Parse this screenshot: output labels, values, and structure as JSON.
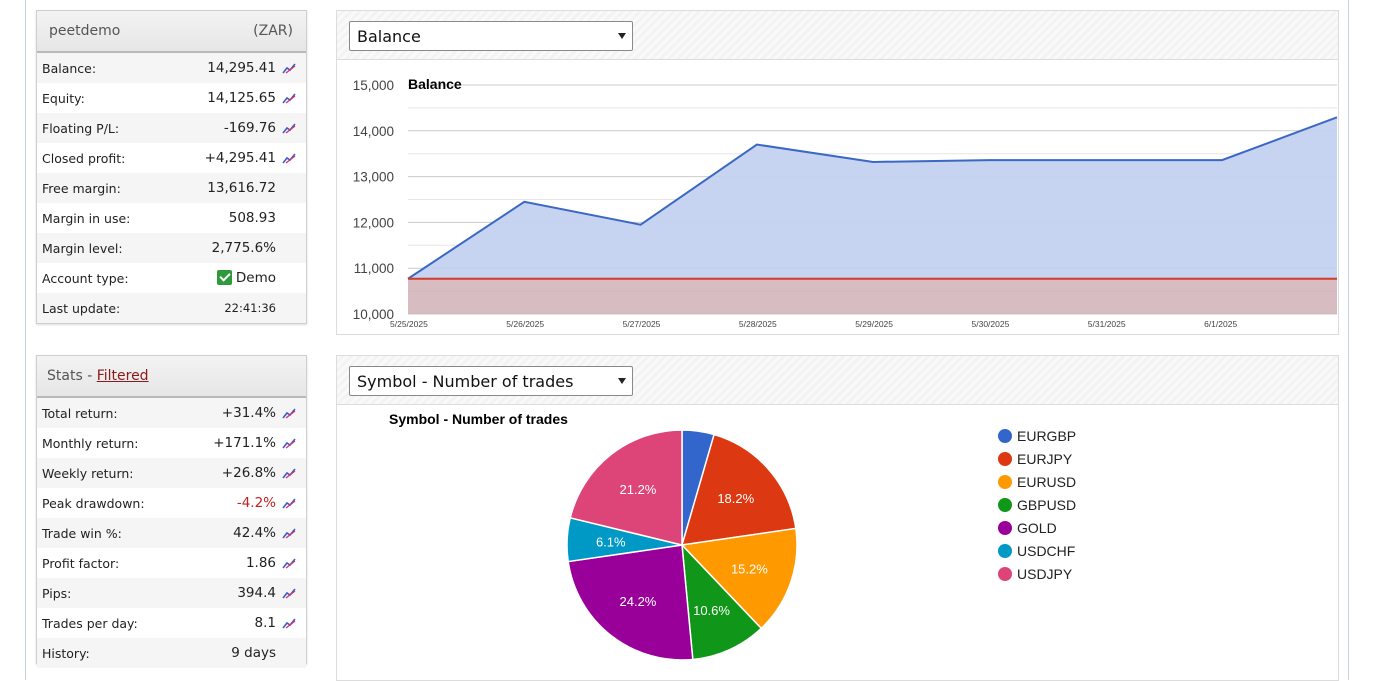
{
  "account": {
    "name": "peetdemo",
    "currency": "(ZAR)",
    "rows": [
      {
        "label": "Balance:",
        "value": "14,295.41",
        "chart_icon": true
      },
      {
        "label": "Equity:",
        "value": "14,125.65",
        "chart_icon": true
      },
      {
        "label": "Floating P/L:",
        "value": "-169.76",
        "chart_icon": true
      },
      {
        "label": "Closed profit:",
        "value": "+4,295.41",
        "chart_icon": true
      },
      {
        "label": "Free margin:",
        "value": "13,616.72",
        "chart_icon": false
      },
      {
        "label": "Margin in use:",
        "value": "508.93",
        "chart_icon": false
      },
      {
        "label": "Margin level:",
        "value": "2,775.6%",
        "chart_icon": false
      },
      {
        "label": "Account type:",
        "value": "Demo",
        "chart_icon": false,
        "check_icon": true
      },
      {
        "label": "Last update:",
        "value": "22:41:36",
        "chart_icon": false,
        "small": true
      }
    ]
  },
  "stats": {
    "title": "Stats",
    "separator": " - ",
    "filter_link": "Filtered",
    "rows": [
      {
        "label": "Total return:",
        "value": "+31.4%",
        "chart_icon": true
      },
      {
        "label": "Monthly return:",
        "value": "+171.1%",
        "chart_icon": true
      },
      {
        "label": "Weekly return:",
        "value": "+26.8%",
        "chart_icon": true
      },
      {
        "label": "Peak drawdown:",
        "value": "-4.2%",
        "chart_icon": true,
        "negative": true
      },
      {
        "label": "Trade win %:",
        "value": "42.4%",
        "chart_icon": true
      },
      {
        "label": "Profit factor:",
        "value": "1.86",
        "chart_icon": true
      },
      {
        "label": "Pips:",
        "value": "394.4",
        "chart_icon": true
      },
      {
        "label": "Trades per day:",
        "value": "8.1",
        "chart_icon": true
      },
      {
        "label": "History:",
        "value": "9 days",
        "chart_icon": false
      }
    ]
  },
  "balance_select": {
    "value": "Balance"
  },
  "symbol_select": {
    "value": "Symbol - Number of trades"
  },
  "colors": {
    "balance_line": "#3a68c4",
    "balance_fill": "#c3d1f0",
    "baseline": "#d43a2a",
    "baseline_fill": "#c9a7ad"
  },
  "chart_data": [
    {
      "type": "area",
      "title": "Balance",
      "x": [
        "5/25/2025",
        "5/26/2025",
        "5/27/2025",
        "5/28/2025",
        "5/29/2025",
        "5/30/2025",
        "5/31/2025",
        "6/1/2025",
        ""
      ],
      "series": [
        {
          "values": [
            10770,
            12450,
            11950,
            13700,
            13320,
            13360,
            13360,
            13360,
            14295
          ]
        },
        {
          "values": [
            10770,
            10770,
            10770,
            10770,
            10770,
            10770,
            10770,
            10770,
            10770
          ]
        }
      ],
      "yticks": [
        "10,000",
        "11,000",
        "12,000",
        "13,000",
        "14,000",
        "15,000"
      ],
      "ylim": [
        10000,
        15000
      ],
      "grid": true
    },
    {
      "type": "pie",
      "title": "Symbol - Number of trades",
      "labels": [
        "EURGBP",
        "EURJPY",
        "EURUSD",
        "GBPUSD",
        "GOLD",
        "USDCHF",
        "USDJPY"
      ],
      "values": [
        4.5,
        18.2,
        15.2,
        10.6,
        24.2,
        6.1,
        21.2
      ],
      "slice_labels": [
        "",
        "18.2%",
        "15.2%",
        "10.6%",
        "24.2%",
        "6.1%",
        "21.2%"
      ],
      "colors": [
        "#3366cc",
        "#dc3912",
        "#ff9900",
        "#109618",
        "#990099",
        "#0099c6",
        "#dd4477"
      ],
      "legend": "right"
    }
  ]
}
